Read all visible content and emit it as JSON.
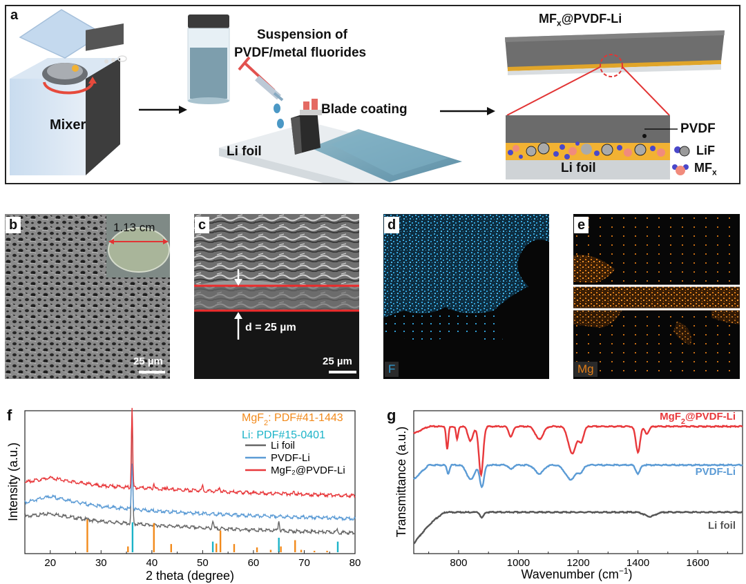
{
  "panel_a": {
    "label": "a",
    "mixer_label": "Mixer",
    "suspension_label_line1": "Suspension of",
    "suspension_label_line2": "PVDF/metal fluorides",
    "blade_label": "Blade coating",
    "lifoil_label": "Li foil",
    "product_title_main": "MF",
    "product_title_sub": "x",
    "product_title_rest": "@PVDF-Li",
    "layer_pvdf": "PVDF",
    "layer_lifoil": "Li foil",
    "legend_lif": "LiF",
    "legend_mfx_main": "MF",
    "legend_mfx_sub": "x"
  },
  "panel_b": {
    "label": "b",
    "diameter": "1.13 cm",
    "scale": "25 µm"
  },
  "panel_c": {
    "label": "c",
    "thickness": "d = 25 µm",
    "scale": "25 µm"
  },
  "panel_d": {
    "label": "d",
    "element": "F",
    "color": "#2f9ed6"
  },
  "panel_e": {
    "label": "e",
    "element": "Mg",
    "color": "#e07d17"
  },
  "colors": {
    "red": "#e8383b",
    "blue": "#5b9bd5",
    "gray": "#666666",
    "orange": "#f28a1b",
    "cyan": "#1bb3c8"
  },
  "chart_data": [
    {
      "id": "f",
      "label": "f",
      "type": "line",
      "xlabel": "2 theta (degree)",
      "ylabel": "Intensity (a.u.)",
      "xlim": [
        15,
        80
      ],
      "xticks": [
        "20",
        "30",
        "40",
        "50",
        "60",
        "70",
        "80"
      ],
      "ref_mgf2_main": "MgF",
      "ref_mgf2_sub": "2",
      "ref_mgf2_rest": ": PDF#41-1443",
      "ref_li": "Li: PDF#15-0401",
      "legend": [
        "Li foil",
        "PVDF-Li",
        "MgF₂@PVDF-Li"
      ],
      "series": [
        {
          "name": "Li foil",
          "color": "#666666",
          "offset": 0.14,
          "hump": [
            [
              15,
              0.12
            ],
            [
              20,
              0.14
            ],
            [
              25,
              0.11
            ],
            [
              30,
              0.085
            ],
            [
              40,
              0.06
            ],
            [
              50,
              0.04
            ],
            [
              60,
              0.025
            ],
            [
              70,
              0.015
            ],
            [
              80,
              0.005
            ]
          ],
          "peaks": [
            [
              36.1,
              0.8
            ],
            [
              52.0,
              0.05
            ],
            [
              65.0,
              0.07
            ],
            [
              76.5,
              0.02
            ]
          ]
        },
        {
          "name": "PVDF-Li",
          "color": "#5b9bd5",
          "offset": 0.24,
          "hump": [
            [
              15,
              0.12
            ],
            [
              20,
              0.16
            ],
            [
              25,
              0.12
            ],
            [
              30,
              0.09
            ],
            [
              40,
              0.06
            ],
            [
              50,
              0.04
            ],
            [
              60,
              0.025
            ],
            [
              70,
              0.015
            ],
            [
              80,
              0.005
            ]
          ],
          "peaks": [
            [
              36.1,
              0.33
            ]
          ]
        },
        {
          "name": "MgF₂@PVDF-Li",
          "color": "#e8383b",
          "offset": 0.4,
          "hump": [
            [
              15,
              0.1
            ],
            [
              20,
              0.13
            ],
            [
              25,
              0.1
            ],
            [
              30,
              0.075
            ],
            [
              40,
              0.055
            ],
            [
              50,
              0.04
            ],
            [
              60,
              0.025
            ],
            [
              70,
              0.015
            ],
            [
              80,
              0.005
            ]
          ],
          "peaks": [
            [
              36.1,
              0.55
            ],
            [
              40.4,
              0.035
            ],
            [
              43.0,
              0.02
            ],
            [
              50.0,
              0.03
            ],
            [
              53.3,
              0.035
            ],
            [
              68.0,
              0.015
            ]
          ]
        }
      ],
      "refs_mgf2": [
        [
          27.3,
          0.68
        ],
        [
          35.3,
          0.12
        ],
        [
          40.4,
          0.6
        ],
        [
          43.8,
          0.17
        ],
        [
          52.7,
          0.18
        ],
        [
          53.5,
          0.45
        ],
        [
          56.2,
          0.17
        ],
        [
          60.7,
          0.1
        ],
        [
          63.4,
          0.05
        ],
        [
          65.4,
          0.12
        ],
        [
          68.2,
          0.25
        ],
        [
          69.4,
          0.05
        ],
        [
          72.0,
          0.03
        ],
        [
          74.5,
          0.03
        ]
      ],
      "refs_li": [
        [
          36.2,
          0.62
        ],
        [
          52.0,
          0.22
        ],
        [
          65.0,
          0.3
        ],
        [
          76.6,
          0.22
        ]
      ]
    },
    {
      "id": "g",
      "label": "g",
      "type": "line",
      "xlabel_main": "Wavenumber (cm",
      "xlabel_sup": "−1",
      "xlabel_close": ")",
      "ylabel": "Transmittance (a.u.)",
      "xlim": [
        650,
        1750
      ],
      "xticks": [
        "800",
        "1000",
        "1200",
        "1400",
        "1600"
      ],
      "series_labels": [
        {
          "main": "MgF",
          "sub": "2",
          "rest": "@PVDF-Li",
          "color": "#e8383b"
        },
        {
          "main": "PVDF-Li",
          "sub": "",
          "rest": "",
          "color": "#5b9bd5"
        },
        {
          "main": "Li foil",
          "sub": "",
          "rest": "",
          "color": "#555555"
        }
      ],
      "series": [
        {
          "name": "MgF₂@PVDF-Li",
          "color": "#e8383b",
          "base": 0.89,
          "features": [
            [
              762,
              0.16,
              5
            ],
            [
              795,
              0.09,
              5
            ],
            [
              840,
              0.1,
              12
            ],
            [
              875,
              0.34,
              10
            ],
            [
              975,
              0.07,
              10
            ],
            [
              1070,
              0.09,
              18
            ],
            [
              1180,
              0.19,
              18
            ],
            [
              1210,
              0.1,
              12
            ],
            [
              1400,
              0.18,
              10
            ],
            [
              1430,
              0.05,
              10
            ]
          ]
        },
        {
          "name": "PVDF-Li",
          "color": "#5b9bd5",
          "base": 0.62,
          "features": [
            [
              765,
              0.06,
              6
            ],
            [
              840,
              0.1,
              18
            ],
            [
              878,
              0.15,
              10
            ],
            [
              975,
              0.03,
              10
            ],
            [
              1070,
              0.06,
              20
            ],
            [
              1175,
              0.1,
              25
            ],
            [
              1210,
              0.04,
              12
            ],
            [
              1400,
              0.06,
              10
            ]
          ]
        },
        {
          "name": "Li foil",
          "color": "#555555",
          "base": 0.29,
          "features": [
            [
              878,
              0.04,
              8
            ],
            [
              1440,
              0.03,
              25
            ]
          ]
        }
      ]
    }
  ]
}
